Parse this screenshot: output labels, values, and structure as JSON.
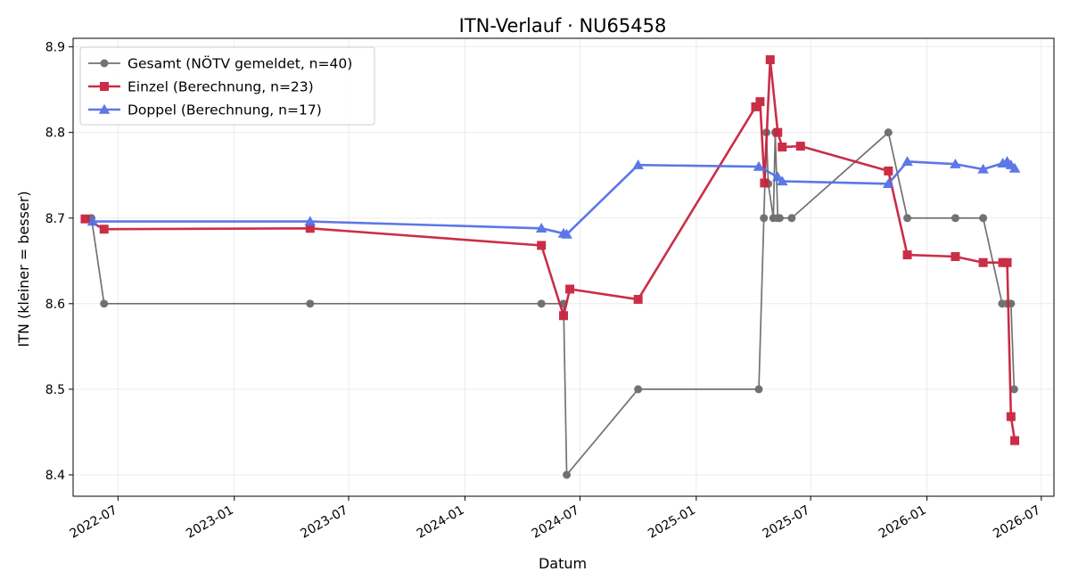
{
  "chart_data": {
    "type": "line",
    "title": "ITN-Verlauf · NU65458",
    "xlabel": "Datum",
    "ylabel": "ITN  (kleiner = besser)",
    "x_axis_type": "date",
    "xlim": [
      "2022-04-21",
      "2026-07-21"
    ],
    "ylim": [
      8.375,
      8.91
    ],
    "x_ticks": [
      "2022-07-01",
      "2023-01-01",
      "2023-07-01",
      "2024-01-01",
      "2024-07-01",
      "2025-01-01",
      "2025-07-01",
      "2026-01-01",
      "2026-07-01"
    ],
    "x_tick_labels": [
      "2022-07",
      "2023-01",
      "2023-07",
      "2024-01",
      "2024-07",
      "2025-01",
      "2025-07",
      "2026-01",
      "2026-07"
    ],
    "y_ticks": [
      8.4,
      8.5,
      8.6,
      8.7,
      8.8,
      8.9
    ],
    "y_tick_labels": [
      "8.4",
      "8.5",
      "8.6",
      "8.7",
      "8.8",
      "8.9"
    ],
    "grid": true,
    "legend_position": "top-left",
    "series": [
      {
        "name": "Gesamt (NÖTV gemeldet, n=40)",
        "color": "#444444",
        "marker": "circle",
        "x": [
          "2022-05-20",
          "2022-06-09",
          "2023-05-01",
          "2024-05-01",
          "2024-06-05",
          "2024-06-10",
          "2024-10-01",
          "2025-04-10",
          "2025-04-18",
          "2025-04-22",
          "2025-04-25",
          "2025-05-03",
          "2025-05-06",
          "2025-05-10",
          "2025-05-13",
          "2025-06-01",
          "2025-11-01",
          "2025-12-01",
          "2026-02-15",
          "2026-03-31",
          "2026-04-30",
          "2026-05-08",
          "2026-05-14",
          "2026-05-19"
        ],
        "y": [
          8.7,
          8.6,
          8.6,
          8.6,
          8.6,
          8.4,
          8.5,
          8.5,
          8.7,
          8.8,
          8.74,
          8.7,
          8.8,
          8.7,
          8.7,
          8.7,
          8.8,
          8.7,
          8.7,
          8.7,
          8.6,
          8.6,
          8.6,
          8.5
        ]
      },
      {
        "name": "Einzel (Berechnung, n=23)",
        "color": "#c8233d",
        "marker": "square",
        "x": [
          "2022-05-10",
          "2022-06-09",
          "2023-05-01",
          "2024-05-01",
          "2024-06-05",
          "2024-06-15",
          "2024-10-01",
          "2025-04-05",
          "2025-04-12",
          "2025-04-19",
          "2025-04-28",
          "2025-05-10",
          "2025-05-17",
          "2025-06-15",
          "2025-11-01",
          "2025-12-01",
          "2026-02-15",
          "2026-03-31",
          "2026-05-01",
          "2026-05-08",
          "2026-05-14",
          "2026-05-20"
        ],
        "y": [
          8.699,
          8.687,
          8.688,
          8.668,
          8.586,
          8.617,
          8.605,
          8.83,
          8.836,
          8.741,
          8.885,
          8.8,
          8.783,
          8.784,
          8.755,
          8.657,
          8.655,
          8.648,
          8.648,
          8.648,
          8.468,
          8.44
        ]
      },
      {
        "name": "Doppel (Berechnung, n=17)",
        "color": "#5470e6",
        "marker": "triangle",
        "x": [
          "2022-05-22",
          "2023-05-01",
          "2024-05-01",
          "2024-06-05",
          "2024-06-10",
          "2024-10-01",
          "2025-04-10",
          "2025-05-10",
          "2025-05-17",
          "2025-11-01",
          "2025-12-01",
          "2026-02-15",
          "2026-03-31",
          "2026-05-01",
          "2026-05-08",
          "2026-05-14",
          "2026-05-20"
        ],
        "y": [
          8.696,
          8.696,
          8.688,
          8.682,
          8.681,
          8.762,
          8.76,
          8.748,
          8.743,
          8.74,
          8.766,
          8.763,
          8.757,
          8.764,
          8.766,
          8.762,
          8.758
        ]
      }
    ]
  }
}
